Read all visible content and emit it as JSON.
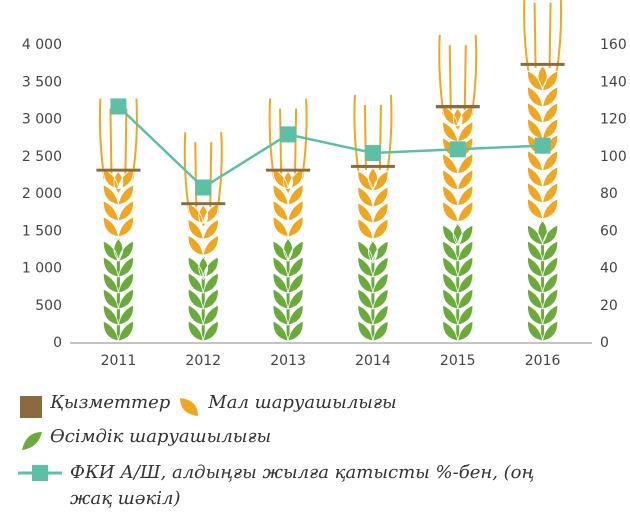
{
  "chart_data": {
    "type": "stacked-bar",
    "categories": [
      "2011",
      "2012",
      "2013",
      "2014",
      "2015",
      "2016"
    ],
    "series": [
      {
        "name": "Өсімдік шаруашылығы",
        "color": "#6aab3c",
        "values": [
          1400,
          1150,
          1400,
          1370,
          1600,
          1640
        ]
      },
      {
        "name": "Мал шаруашылығы",
        "color": "#f0a620",
        "values": [
          900,
          700,
          900,
          980,
          1550,
          2080
        ]
      },
      {
        "name": "Қызметтер",
        "color": "#8b6a3e",
        "values": [
          40,
          40,
          40,
          40,
          45,
          40
        ]
      },
      {
        "name": "ФКИ А/Ш, алдыңғы жылға қатысты %-бен, (оң жақ шәкіл)",
        "color": "#5dbfa6",
        "axis": "y2",
        "type": "line",
        "values": [
          127,
          83.5,
          112,
          102,
          104,
          106
        ]
      }
    ],
    "ylim": [
      0,
      4000
    ],
    "yticks": [
      0,
      500,
      {
        "value": 1000,
        "label": "1 000"
      },
      {
        "value": 1500,
        "label": "1 500"
      },
      {
        "value": 2000,
        "label": "2 000"
      },
      {
        "value": 2500,
        "label": "2 500"
      },
      {
        "value": 3000,
        "label": "3 000"
      },
      {
        "value": 3500,
        "label": "3 500"
      },
      {
        "value": 4000,
        "label": "4 000"
      }
    ],
    "y2lim": [
      0,
      160
    ],
    "y2ticks": [
      0,
      20,
      40,
      60,
      80,
      100,
      120,
      140,
      160
    ]
  }
}
